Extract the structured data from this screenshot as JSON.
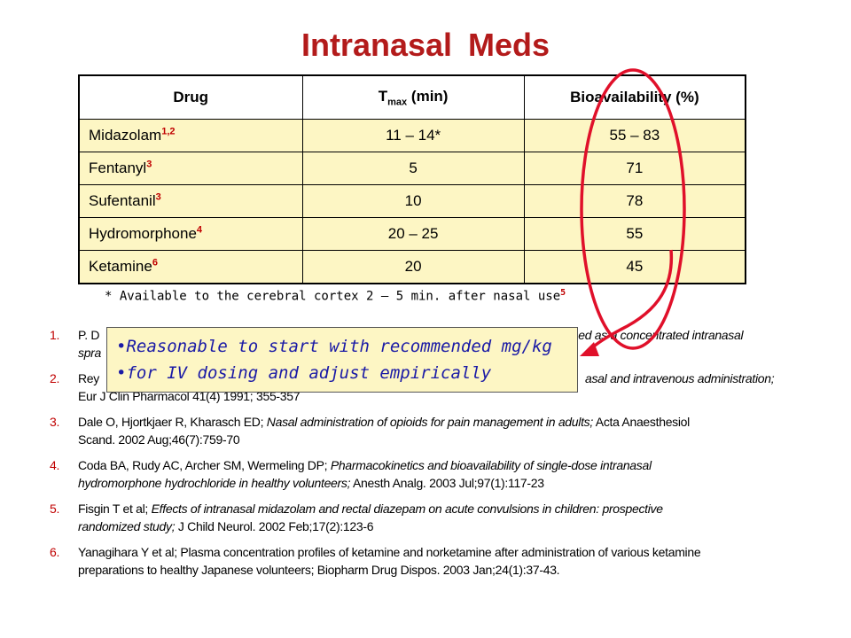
{
  "slide": {
    "title": "Intranasal Meds"
  },
  "table": {
    "headers": {
      "drug": "Drug",
      "tmax_prefix": "T",
      "tmax_sub": "max",
      "tmax_suffix": " (min)",
      "bio": "Bioavailability (%)"
    },
    "rows": [
      {
        "name": "Midazolam",
        "ref": "1,2",
        "tmax": "11 – 14*",
        "bio": "55 – 83"
      },
      {
        "name": "Fentanyl",
        "ref": "3",
        "tmax": "5",
        "bio": "71"
      },
      {
        "name": "Sufentanil",
        "ref": "3",
        "tmax": "10",
        "bio": "78"
      },
      {
        "name": "Hydromorphone",
        "ref": "4",
        "tmax": "20 – 25",
        "bio": "55"
      },
      {
        "name": "Ketamine",
        "ref": "6",
        "tmax": "20",
        "bio": "45"
      }
    ]
  },
  "footnote": {
    "text": "* Available to the cerebral cortex 2 – 5 min. after nasal use",
    "ref": "5"
  },
  "callout": {
    "line1": "•Reasonable to start with recommended mg/kg",
    "line2": "•for IV dosing and adjust empirically"
  },
  "references": [
    {
      "num": "1.",
      "a": "P. D",
      "b": "",
      "c": "",
      "tail_italic": "ed as a concentrated intranasal",
      "line2": "spra"
    },
    {
      "num": "2.",
      "a": "Rey",
      "tail_italic": "asal and intravenous administration;",
      "line2": "Eur J Clin Pharmacol 41(4) 1991; 355-357"
    },
    {
      "num": "3.",
      "a": "Dale O, Hjortkjaer R, Kharasch ED; ",
      "i": "Nasal administration of opioids for pain management in adults;",
      "b": " Acta Anaesthesiol",
      "line2": "Scand. 2002 Aug;46(7):759-70"
    },
    {
      "num": "4.",
      "a": "Coda BA, Rudy AC, Archer SM, Wermeling DP; ",
      "i": "Pharmacokinetics and bioavailability of single-dose intranasal",
      "line2i": "hydromorphone hydrochloride in healthy volunteers;",
      "line2": " Anesth Analg. 2003 Jul;97(1):117-23"
    },
    {
      "num": "5.",
      "a": "Fisgin T et al; ",
      "i": "Effects of intranasal midazolam and rectal diazepam on acute convulsions in children: prospective",
      "line2i": "randomized study;",
      "line2": " J Child Neurol. 2002 Feb;17(2):123-6"
    },
    {
      "num": "6.",
      "a": "Yanagihara Y et al; Plasma concentration profiles of ketamine and norketamine after administration of various ketamine",
      "line2": "preparations to healthy Japanese volunteers; Biopharm Drug Dispos. 2003 Jan;24(1):37-43."
    }
  ],
  "colors": {
    "title": "#b31b1b",
    "table_fill": "#fdf6c4",
    "reference_numbers": "#c00000",
    "callout_text": "#1a1aa6",
    "annotation": "#e0102a"
  }
}
